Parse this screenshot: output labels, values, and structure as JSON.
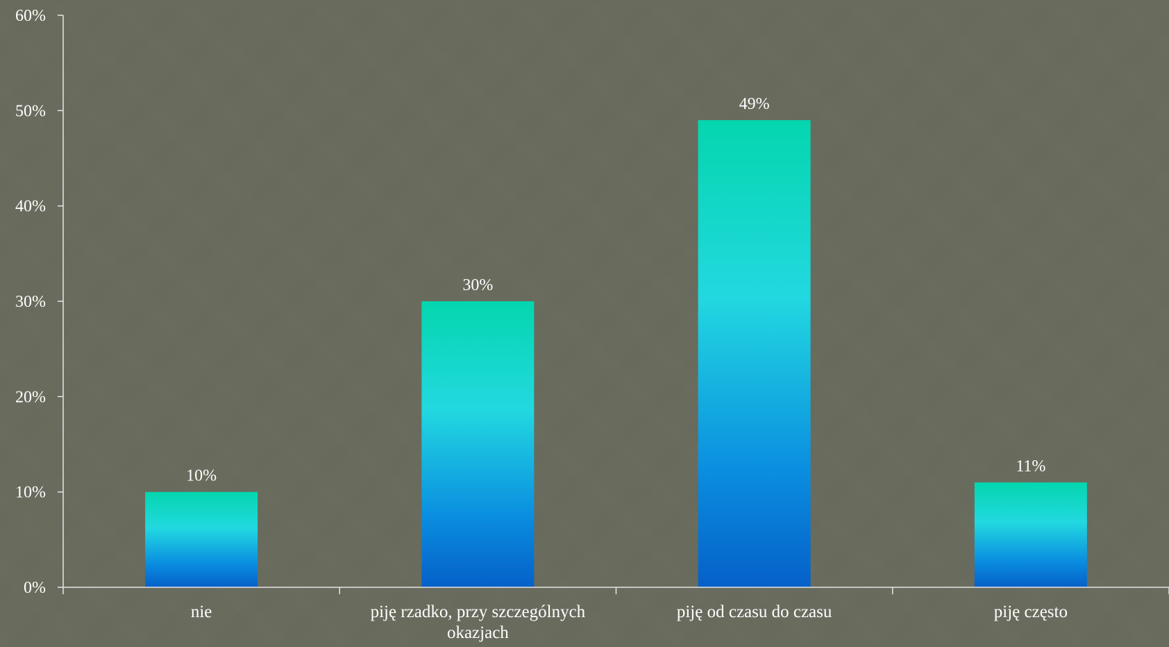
{
  "chart_data": {
    "type": "bar",
    "categories": [
      "nie",
      "piję rzadko, przy szczególnych okazjach",
      "piję od czasu do czasu",
      "piję często"
    ],
    "category_lines": [
      [
        "nie"
      ],
      [
        "piję rzadko, przy szczególnych",
        "okazjach"
      ],
      [
        "piję od czasu do czasu"
      ],
      [
        "piję często"
      ]
    ],
    "values": [
      10,
      30,
      49,
      11
    ],
    "data_labels": [
      "10%",
      "30%",
      "49%",
      "11%"
    ],
    "ylim": [
      0,
      60
    ],
    "y_ticks": [
      0,
      10,
      20,
      30,
      40,
      50,
      60
    ],
    "y_tick_labels": [
      "0%",
      "10%",
      "20%",
      "30%",
      "40%",
      "50%",
      "60%"
    ],
    "title": "",
    "xlabel": "",
    "ylabel": "",
    "grid": false,
    "legend": "none",
    "colors": {
      "bar_top": "#04d6ae",
      "bar_mid": "#22d8e0",
      "bar_low": "#0a8ee0",
      "bar_bottom": "#0560c8",
      "axis": "#e6e6e6",
      "text": "#ffffff",
      "background": "#686b5c"
    }
  }
}
